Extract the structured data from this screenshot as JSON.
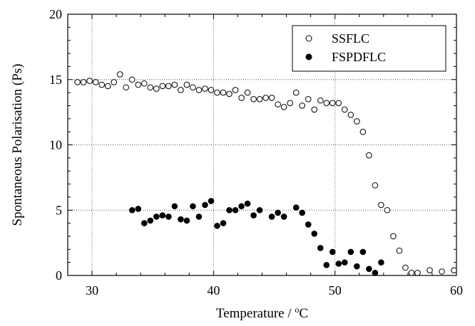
{
  "chart_data": {
    "type": "scatter",
    "title": "",
    "xlabel": "Temperature / °C",
    "xlabel_main": "Temperature / ",
    "xlabel_sup": "o",
    "xlabel_unit": "C",
    "ylabel": "Spontaneous Polarisation (Ps)",
    "xlim": [
      28,
      60
    ],
    "ylim": [
      0,
      20
    ],
    "xticks": [
      30,
      40,
      50,
      60
    ],
    "yticks": [
      0,
      5,
      10,
      15,
      20
    ],
    "grid": true,
    "legend_position": "top-right",
    "series": [
      {
        "name": "SSFLC",
        "marker": "open-circle",
        "color": "#000000",
        "points": [
          [
            28.8,
            14.8
          ],
          [
            29.3,
            14.8
          ],
          [
            29.8,
            14.9
          ],
          [
            30.3,
            14.8
          ],
          [
            30.8,
            14.6
          ],
          [
            31.3,
            14.5
          ],
          [
            31.8,
            14.8
          ],
          [
            32.3,
            15.4
          ],
          [
            32.8,
            14.4
          ],
          [
            33.3,
            15.0
          ],
          [
            33.8,
            14.6
          ],
          [
            34.3,
            14.7
          ],
          [
            34.8,
            14.4
          ],
          [
            35.3,
            14.3
          ],
          [
            35.8,
            14.5
          ],
          [
            36.3,
            14.5
          ],
          [
            36.8,
            14.6
          ],
          [
            37.3,
            14.2
          ],
          [
            37.8,
            14.6
          ],
          [
            38.3,
            14.4
          ],
          [
            38.8,
            14.2
          ],
          [
            39.3,
            14.3
          ],
          [
            39.8,
            14.2
          ],
          [
            40.3,
            14.0
          ],
          [
            40.8,
            14.0
          ],
          [
            41.3,
            13.9
          ],
          [
            41.8,
            14.2
          ],
          [
            42.3,
            13.6
          ],
          [
            42.8,
            14.0
          ],
          [
            43.3,
            13.5
          ],
          [
            43.8,
            13.5
          ],
          [
            44.3,
            13.6
          ],
          [
            44.8,
            13.6
          ],
          [
            45.3,
            13.1
          ],
          [
            45.8,
            12.9
          ],
          [
            46.3,
            13.2
          ],
          [
            46.8,
            14.0
          ],
          [
            47.3,
            13.0
          ],
          [
            47.8,
            13.5
          ],
          [
            48.3,
            12.7
          ],
          [
            48.8,
            13.4
          ],
          [
            49.3,
            13.2
          ],
          [
            49.8,
            13.2
          ],
          [
            50.3,
            13.2
          ],
          [
            50.8,
            12.7
          ],
          [
            51.3,
            12.3
          ],
          [
            51.8,
            11.8
          ],
          [
            52.3,
            11.0
          ],
          [
            52.8,
            9.2
          ],
          [
            53.3,
            6.9
          ],
          [
            53.8,
            5.4
          ],
          [
            54.3,
            5.0
          ],
          [
            54.8,
            3.0
          ],
          [
            55.3,
            1.9
          ],
          [
            55.8,
            0.6
          ],
          [
            56.3,
            0.2
          ],
          [
            56.8,
            0.2
          ],
          [
            57.8,
            0.4
          ],
          [
            58.8,
            0.3
          ],
          [
            59.8,
            0.4
          ]
        ]
      },
      {
        "name": "FSPDFLC",
        "marker": "filled-circle",
        "color": "#000000",
        "points": [
          [
            33.3,
            5.0
          ],
          [
            33.8,
            5.1
          ],
          [
            34.3,
            4.0
          ],
          [
            34.8,
            4.2
          ],
          [
            35.3,
            4.5
          ],
          [
            35.8,
            4.6
          ],
          [
            36.3,
            4.5
          ],
          [
            36.8,
            5.3
          ],
          [
            37.3,
            4.3
          ],
          [
            37.8,
            4.2
          ],
          [
            38.3,
            5.3
          ],
          [
            38.8,
            4.5
          ],
          [
            39.3,
            5.4
          ],
          [
            39.8,
            5.7
          ],
          [
            40.3,
            3.8
          ],
          [
            40.8,
            4.0
          ],
          [
            41.3,
            5.0
          ],
          [
            41.8,
            5.0
          ],
          [
            42.3,
            5.3
          ],
          [
            42.8,
            5.5
          ],
          [
            43.3,
            4.6
          ],
          [
            43.8,
            5.0
          ],
          [
            44.8,
            4.5
          ],
          [
            45.3,
            4.8
          ],
          [
            45.8,
            4.5
          ],
          [
            46.8,
            5.2
          ],
          [
            47.3,
            4.8
          ],
          [
            47.8,
            3.9
          ],
          [
            48.3,
            3.2
          ],
          [
            48.8,
            2.1
          ],
          [
            49.3,
            0.8
          ],
          [
            49.8,
            1.8
          ],
          [
            50.3,
            0.9
          ],
          [
            50.8,
            1.0
          ],
          [
            51.3,
            1.8
          ],
          [
            51.8,
            0.7
          ],
          [
            52.3,
            1.8
          ],
          [
            52.8,
            0.5
          ],
          [
            53.3,
            0.2
          ],
          [
            53.8,
            1.0
          ]
        ]
      }
    ]
  }
}
